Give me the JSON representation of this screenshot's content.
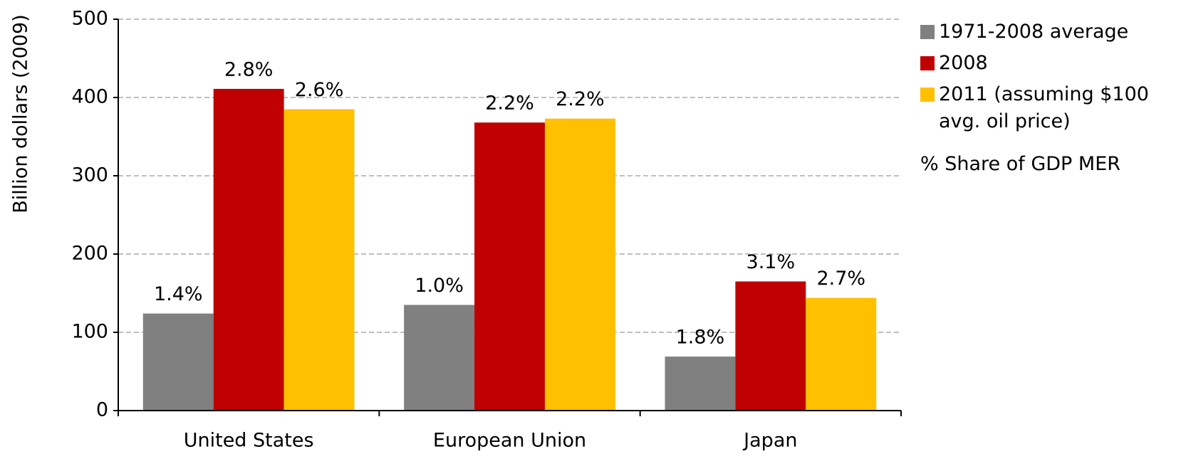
{
  "chart_data": {
    "type": "bar",
    "y_label": "Billion dollars (2009)",
    "categories": [
      "United States",
      "European Union",
      "Japan"
    ],
    "series": [
      {
        "name": "1971-2008 average",
        "color": "#808080",
        "values": [
          124,
          135,
          69
        ],
        "annotations": [
          "1.4%",
          "1.0%",
          "1.8%"
        ]
      },
      {
        "name": "2008",
        "color": "#c00000",
        "values": [
          411,
          368,
          165
        ],
        "annotations": [
          "2.8%",
          "2.2%",
          "3.1%"
        ]
      },
      {
        "name": "2011 (assuming $100 avg. oil price)",
        "color": "#ffc000",
        "values": [
          385,
          373,
          144
        ],
        "annotations": [
          "2.6%",
          "2.2%",
          "2.7%"
        ]
      }
    ],
    "legend_note": "% Share of GDP MER",
    "ylim": [
      0,
      500
    ],
    "yticks": [
      0,
      100,
      200,
      300,
      400,
      500
    ],
    "grid": true,
    "legend": "right"
  }
}
